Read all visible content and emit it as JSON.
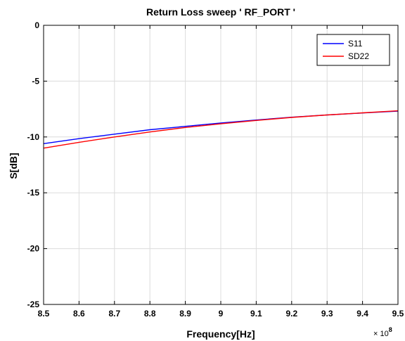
{
  "chart_data": {
    "type": "line",
    "title": "Return Loss sweep ' RF_PORT '",
    "xlabel": "Frequency[Hz]",
    "ylabel": "S[dB]",
    "x_exponent_label": "× 10",
    "x_exponent_power": "8",
    "xlim": [
      8.5,
      9.5
    ],
    "ylim": [
      -25,
      0
    ],
    "xticks": [
      8.5,
      8.6,
      8.7,
      8.8,
      8.9,
      9,
      9.1,
      9.2,
      9.3,
      9.4,
      9.5
    ],
    "xtick_labels": [
      "8.5",
      "8.6",
      "8.7",
      "8.8",
      "8.9",
      "9",
      "9.1",
      "9.2",
      "9.3",
      "9.4",
      "9.5"
    ],
    "yticks": [
      0,
      -5,
      -10,
      -15,
      -20,
      -25
    ],
    "ytick_labels": [
      "0",
      "-5",
      "-10",
      "-15",
      "-20",
      "-25"
    ],
    "grid": true,
    "legend_position": "top-right",
    "x": [
      8.5,
      8.6,
      8.7,
      8.8,
      8.9,
      9.0,
      9.1,
      9.2,
      9.3,
      9.4,
      9.5
    ],
    "series": [
      {
        "name": "S11",
        "color": "#0000ff",
        "values": [
          -10.6,
          -10.15,
          -9.75,
          -9.35,
          -9.05,
          -8.75,
          -8.48,
          -8.23,
          -8.03,
          -7.85,
          -7.68
        ]
      },
      {
        "name": "SD22",
        "color": "#ff0000",
        "values": [
          -11.0,
          -10.48,
          -10.0,
          -9.55,
          -9.15,
          -8.82,
          -8.52,
          -8.25,
          -8.03,
          -7.84,
          -7.66
        ]
      }
    ]
  }
}
